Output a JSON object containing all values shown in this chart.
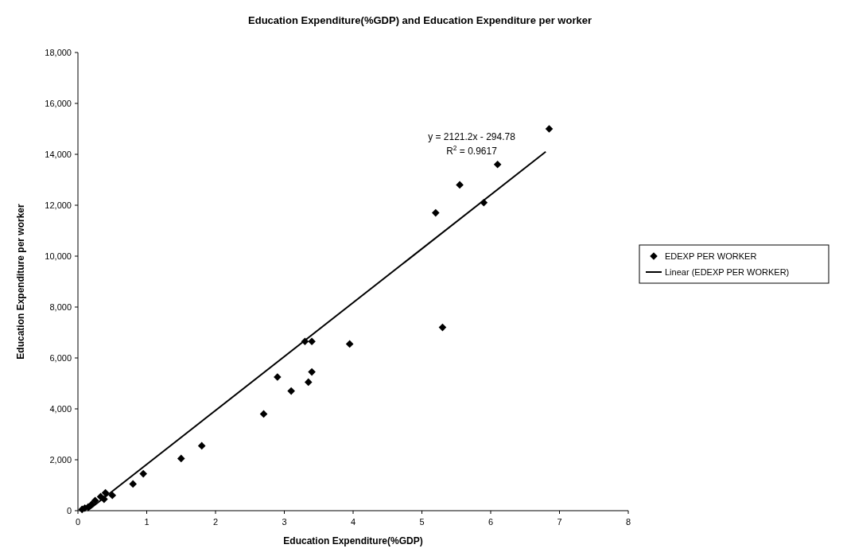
{
  "chart_data": {
    "type": "scatter",
    "title": "Education Expenditure(%GDP) and Education Expenditure per worker",
    "xlabel": "Education Expenditure(%GDP)",
    "ylabel": "Education Expenditure per worker",
    "xlim": [
      0,
      8
    ],
    "xticks": [
      0,
      1,
      2,
      3,
      4,
      5,
      6,
      7,
      8
    ],
    "ylim": [
      0,
      18000
    ],
    "yticks": [
      {
        "value": 0,
        "label": "0"
      },
      {
        "value": 2000,
        "label": "2,000"
      },
      {
        "value": 4000,
        "label": "4,000"
      },
      {
        "value": 6000,
        "label": "6,000"
      },
      {
        "value": 8000,
        "label": "8,000"
      },
      {
        "value": 10000,
        "label": "10,000"
      },
      {
        "value": 12000,
        "label": "12,000"
      },
      {
        "value": 14000,
        "label": "14,000"
      },
      {
        "value": 16000,
        "label": "16,000"
      },
      {
        "value": 18000,
        "label": "18,000"
      }
    ],
    "grid": false,
    "legend": "right",
    "marker": "diamond",
    "annotations": [
      "y = 2121.2x - 294.78",
      "R$^{2}$ = 0.9617"
    ],
    "series": [
      {
        "name": "EDEXP PER WORKER",
        "color": "#000000",
        "x": [
          6.85,
          6.1,
          5.55,
          5.9,
          5.2,
          5.3,
          3.3,
          3.4,
          3.95,
          2.9,
          3.4,
          3.35,
          3.1,
          2.7,
          1.8,
          1.5,
          0.95,
          0.8,
          0.5,
          0.4,
          0.38,
          0.33,
          0.25,
          0.2,
          0.15,
          0.1,
          0.06
        ],
        "values": [
          15000,
          13600,
          12800,
          12100,
          11700,
          7200,
          6650,
          6650,
          6550,
          5250,
          5450,
          5050,
          4700,
          3800,
          2550,
          2050,
          1450,
          1050,
          600,
          700,
          450,
          550,
          400,
          250,
          150,
          100,
          50
        ]
      },
      {
        "name": "Linear (EDEXP PER WORKER)",
        "type": "line",
        "color": "#000000",
        "marker": "none",
        "line_style": "solid",
        "x": [
          0.14,
          6.8
        ],
        "values": [
          0,
          14100
        ]
      }
    ]
  }
}
